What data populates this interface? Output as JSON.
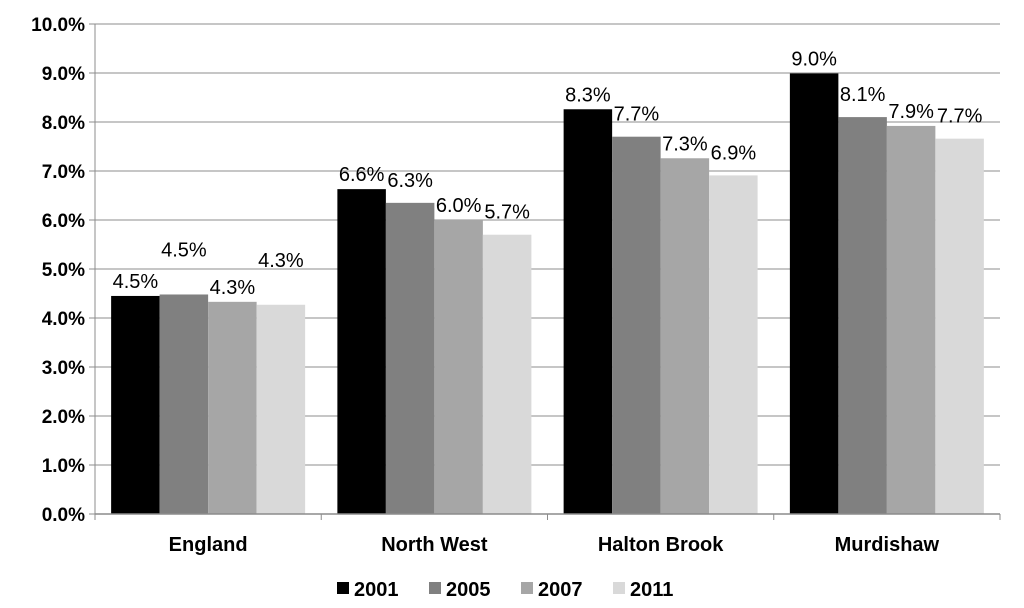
{
  "chart_data": {
    "type": "bar",
    "categories": [
      "England",
      "North West",
      "Halton Brook",
      "Murdishaw"
    ],
    "series": [
      {
        "name": "2001",
        "color": "#000000",
        "values": [
          4.45,
          6.63,
          8.26,
          8.99
        ],
        "labels": [
          "4.5%",
          "6.6%",
          "8.3%",
          "9.0%"
        ]
      },
      {
        "name": "2005",
        "color": "#808080",
        "values": [
          4.48,
          6.35,
          7.7,
          8.1
        ],
        "labels": [
          "4.5%",
          "6.3%",
          "7.7%",
          "8.1%"
        ]
      },
      {
        "name": "2007",
        "color": "#a6a6a6",
        "values": [
          4.33,
          6.0,
          7.26,
          7.92
        ],
        "labels": [
          "4.3%",
          "6.0%",
          "7.3%",
          "7.9%"
        ]
      },
      {
        "name": "2011",
        "color": "#d9d9d9",
        "values": [
          4.27,
          5.7,
          6.91,
          7.66
        ],
        "labels": [
          "4.3%",
          "5.7%",
          "6.9%",
          "7.7%"
        ]
      }
    ],
    "y_ticks": [
      "0.0%",
      "1.0%",
      "2.0%",
      "3.0%",
      "4.0%",
      "5.0%",
      "6.0%",
      "7.0%",
      "8.0%",
      "9.0%",
      "10.0%"
    ],
    "ylim": [
      0,
      10
    ],
    "grid": true,
    "legend_position": "bottom",
    "title": "",
    "xlabel": "",
    "ylabel": ""
  }
}
